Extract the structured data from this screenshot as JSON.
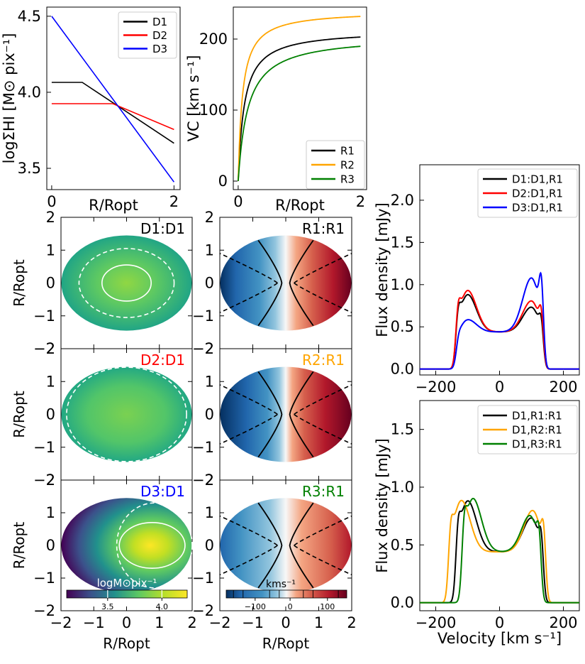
{
  "chart_data": [
    {
      "id": "sigma",
      "type": "line",
      "ylabel": "logΣHI [M⊙ pix⁻¹]",
      "xlabel": "R/Ropt",
      "xlim": [
        -0.08,
        2.1
      ],
      "ylim": [
        3.36,
        4.56
      ],
      "xticks": [
        0,
        2
      ],
      "yticks": [
        3.5,
        4.0,
        4.5
      ],
      "ytick_labels": [
        "3.5",
        "4.0",
        "4.5"
      ],
      "legend": "top-right",
      "series": [
        {
          "name": "D1",
          "color": "#000000",
          "x": [
            0,
            0.5,
            2
          ],
          "y": [
            4.065,
            4.065,
            3.665
          ]
        },
        {
          "name": "D2",
          "color": "#ff0000",
          "x": [
            0,
            1.0,
            2
          ],
          "y": [
            3.925,
            3.925,
            3.755
          ]
        },
        {
          "name": "D3",
          "color": "#0000ff",
          "x": [
            0,
            2
          ],
          "y": [
            4.5,
            3.41
          ]
        }
      ]
    },
    {
      "id": "vc",
      "type": "line",
      "ylabel": "VC [km s⁻¹]",
      "xlabel": "R/Ropt",
      "xlim": [
        -0.08,
        2.1
      ],
      "ylim": [
        -12,
        245
      ],
      "xticks": [
        0,
        2
      ],
      "yticks": [
        0,
        100,
        200
      ],
      "legend": "lower-right",
      "series": [
        {
          "name": "R1",
          "color": "#000000",
          "vmax": 213,
          "rt": 0.1
        },
        {
          "name": "R2",
          "color": "#ffa500",
          "vmax": 240,
          "rt": 0.07
        },
        {
          "name": "R3",
          "color": "#008000",
          "vmax": 205,
          "rt": 0.16
        }
      ]
    },
    {
      "id": "maps",
      "type": "heatmap",
      "xlabel": "R/Ropt",
      "ylabel": "R/Ropt",
      "xlim": [
        -2,
        2
      ],
      "ylim": [
        -2,
        2
      ],
      "xticks": [
        -2,
        -1,
        0,
        1,
        2
      ],
      "yticks": [
        -2,
        -1,
        0,
        1,
        2
      ],
      "panels": [
        {
          "label": "D1:D1",
          "color": "#000000"
        },
        {
          "label": "D2:D1",
          "color": "#ff0000"
        },
        {
          "label": "D3:D1",
          "color": "#0000ff"
        },
        {
          "label": "R1:R1",
          "color": "#000000"
        },
        {
          "label": "R2:R1",
          "color": "#ffa500"
        },
        {
          "label": "R3:R1",
          "color": "#008000"
        }
      ],
      "colorbar_density": {
        "label": "logM⊙pix⁻¹",
        "ticks": [
          "3.5",
          "4.0"
        ]
      },
      "colorbar_velocity": {
        "label": "kms⁻¹",
        "ticks": [
          "−100",
          "0",
          "100"
        ]
      }
    },
    {
      "id": "flux1",
      "type": "line",
      "ylabel": "Flux density [mJy]",
      "xlim": [
        -250,
        250
      ],
      "ylim": [
        -0.07,
        2.42
      ],
      "xticks": [
        -200,
        0,
        200
      ],
      "yticks": [
        0.0,
        0.5,
        1.0,
        1.5,
        2.0
      ],
      "ytick_labels": [
        "0.0",
        "0.5",
        "1.0",
        "1.5",
        "2.0"
      ],
      "legend": "top-right",
      "series": [
        {
          "name": "D1:D1,R1",
          "color": "#000000",
          "vmax": 135,
          "a": 1.8,
          "b": 1.2,
          "shift": 0
        },
        {
          "name": "D2:D1,R1",
          "color": "#ff0000",
          "vmax": 135,
          "a": 2.0,
          "b": 1.5,
          "shift": 0
        },
        {
          "name": "D3:D1,R1",
          "color": "#0000ff",
          "vmax": 135,
          "a": 0.6,
          "b": 2.6,
          "shift": 0
        }
      ]
    },
    {
      "id": "flux2",
      "type": "line",
      "ylabel": "Flux density [mJy]",
      "xlabel": "Velocity [km s⁻¹]",
      "xlim": [
        -250,
        250
      ],
      "ylim": [
        -0.07,
        1.75
      ],
      "xticks": [
        -200,
        0,
        200
      ],
      "yticks": [
        0.0,
        0.5,
        1.0,
        1.5
      ],
      "ytick_labels": [
        "0.0",
        "0.5",
        "1.0",
        "1.5"
      ],
      "legend": "top-right",
      "series": [
        {
          "name": "D1,R1:R1",
          "color": "#000000",
          "vmax": 135,
          "a": 1.8,
          "b": 1.2,
          "shift": 0
        },
        {
          "name": "D1,R2:R1",
          "color": "#ffa500",
          "vmax": 150,
          "a": 1.8,
          "b": 1.45,
          "shift": -8
        },
        {
          "name": "D1,R3:R1",
          "color": "#008000",
          "vmax": 122,
          "a": 1.9,
          "b": 1.3,
          "shift": 6
        }
      ]
    }
  ]
}
